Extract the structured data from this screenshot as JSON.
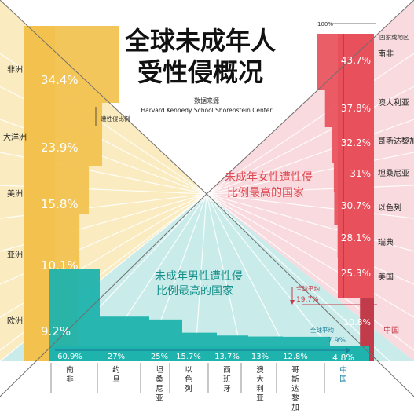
{
  "header": {
    "title_line1": "全球未成年人",
    "title_line2": "受性侵概况",
    "source_label": "数据来源",
    "source_name": "Harvard Kennedy School Shorenstein Center"
  },
  "colors": {
    "yellow": "#f2c14e",
    "yellow_light": "#faecc0",
    "red": "#e8505b",
    "red_light": "#f9dade",
    "teal": "#1fb3ad",
    "teal_light": "#c9ecea",
    "dark_red": "#c23b4a",
    "dark_teal": "#1a7f9c"
  },
  "chart_data": [
    {
      "type": "bar",
      "name": "regions",
      "series_label": "遭性侵比例",
      "categories": [
        "非洲",
        "大洋洲",
        "美洲",
        "亚洲",
        "欧洲"
      ],
      "values": [
        34.4,
        23.9,
        15.8,
        10.1,
        9.2
      ],
      "value_labels": [
        "34.4%",
        "23.9%",
        "15.8%",
        "10.1%",
        "9.2%"
      ],
      "unit": "%"
    },
    {
      "type": "bar",
      "name": "female_top_countries",
      "title": "未成年女性遭性侵比例最高的国家",
      "axis_label": "国家或地区",
      "max_label": "100%",
      "categories": [
        "南非",
        "澳大利亚",
        "哥斯达黎加",
        "坦桑尼亚",
        "以色列",
        "瑞典",
        "美国",
        "中国"
      ],
      "values": [
        43.7,
        37.8,
        32.2,
        31,
        30.7,
        28.1,
        25.3,
        10.8
      ],
      "value_labels": [
        "43.7%",
        "37.8%",
        "32.2%",
        "31%",
        "30.7%",
        "28.1%",
        "25.3%",
        "10.8%"
      ],
      "global_average_label": "全球平均",
      "global_average": 19.7,
      "global_average_text": "19.7%",
      "unit": "%"
    },
    {
      "type": "bar",
      "name": "male_top_countries",
      "title": "未成年男性遭性侵比例最高的国家",
      "categories": [
        "南非",
        "约旦",
        "坦桑尼亚",
        "以色列",
        "西班牙",
        "澳大利亚",
        "哥斯达黎加",
        "中国"
      ],
      "values": [
        60.9,
        27,
        25,
        15.7,
        13.7,
        13,
        12.8,
        4.8
      ],
      "value_labels": [
        "60.9%",
        "27%",
        "25%",
        "15.7%",
        "13.7%",
        "13%",
        "12.8%",
        "4.8%"
      ],
      "global_average_label": "全球平均",
      "global_average": 7.9,
      "global_average_text": "7.9%",
      "unit": "%"
    }
  ]
}
